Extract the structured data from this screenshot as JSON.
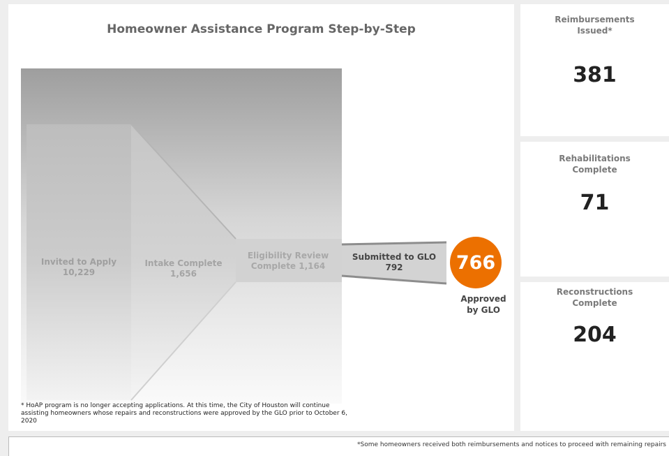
{
  "dashboard": {
    "title": "Homeowner Assistance Program Step-by-Step",
    "footnote": "* HoAP program is no longer accepting applications. At this time, the City of Houston will continue assisting homeowners whose repairs and reconstructions were approved by the GLO prior to October 6, 2020",
    "bottom_note": "*Some homeowners received both reimbursements and notices to proceed with remaining repairs"
  },
  "funnel": {
    "stages": [
      {
        "line1": "Invited to Apply",
        "line2": "10,229"
      },
      {
        "line1": "Intake Complete",
        "line2": "1,656"
      },
      {
        "line1": "Eligibility Review",
        "line2": "Complete 1,164"
      },
      {
        "line1": "Submitted to GLO",
        "line2": "792"
      }
    ],
    "approved": {
      "value": "766",
      "caption_line1": "Approved",
      "caption_line2": "by GLO",
      "color": "#ec7000"
    }
  },
  "stats": [
    {
      "label_line1": "Reimbursements",
      "label_line2": "Issued*",
      "value": "381"
    },
    {
      "label_line1": "Rehabilitations",
      "label_line2": "Complete",
      "value": "71"
    },
    {
      "label_line1": "Reconstructions",
      "label_line2": "Complete",
      "value": "204"
    }
  ]
}
